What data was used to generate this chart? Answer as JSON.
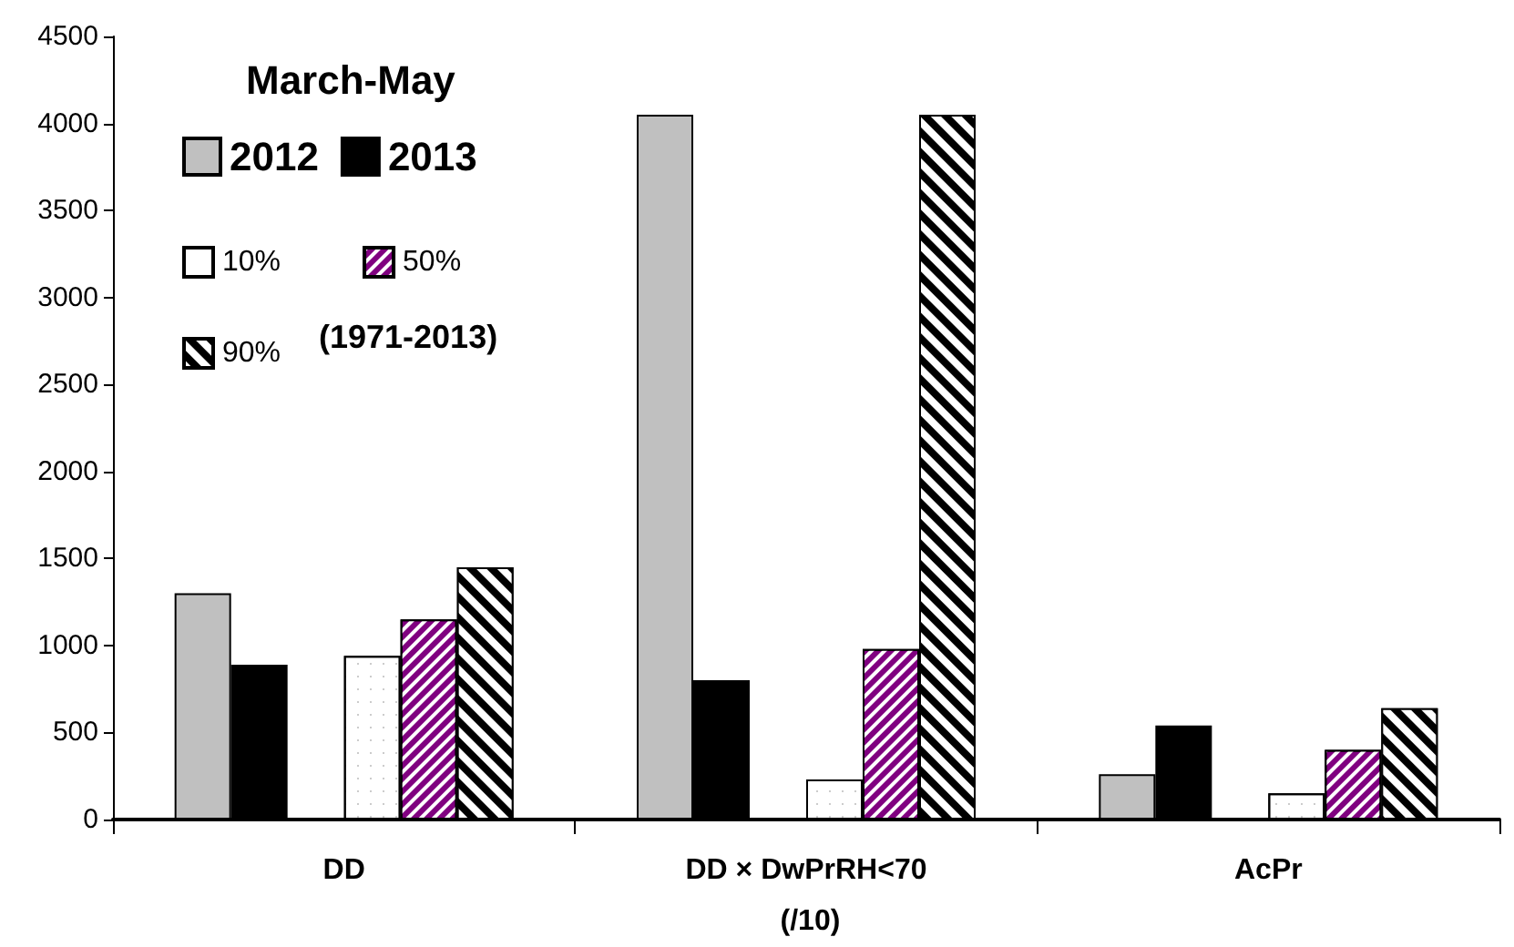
{
  "chart_data": {
    "type": "bar",
    "legend_title": "March-May",
    "annotations": [
      "(1971-2013)"
    ],
    "categories": [
      "DD",
      "DD × DwPrRH<70 (/10)",
      "AcPr"
    ],
    "series": [
      {
        "name": "2012",
        "color": "#c0c0c0",
        "values": [
          1300,
          4050,
          260
        ]
      },
      {
        "name": "2013",
        "color": "#000000",
        "values": [
          890,
          800,
          540
        ]
      },
      {
        "name": "10%",
        "color": "#ffffff",
        "values": [
          940,
          230,
          150
        ]
      },
      {
        "name": "50%",
        "color": "#800080",
        "values": [
          1150,
          980,
          400
        ]
      },
      {
        "name": "90%",
        "color": "#000000",
        "values": [
          1450,
          4050,
          640
        ]
      }
    ],
    "ylim": [
      0,
      4500
    ],
    "yticks": [
      0,
      500,
      1000,
      1500,
      2000,
      2500,
      3000,
      3500,
      4000,
      4500
    ],
    "grid": false,
    "legend": "top left"
  }
}
